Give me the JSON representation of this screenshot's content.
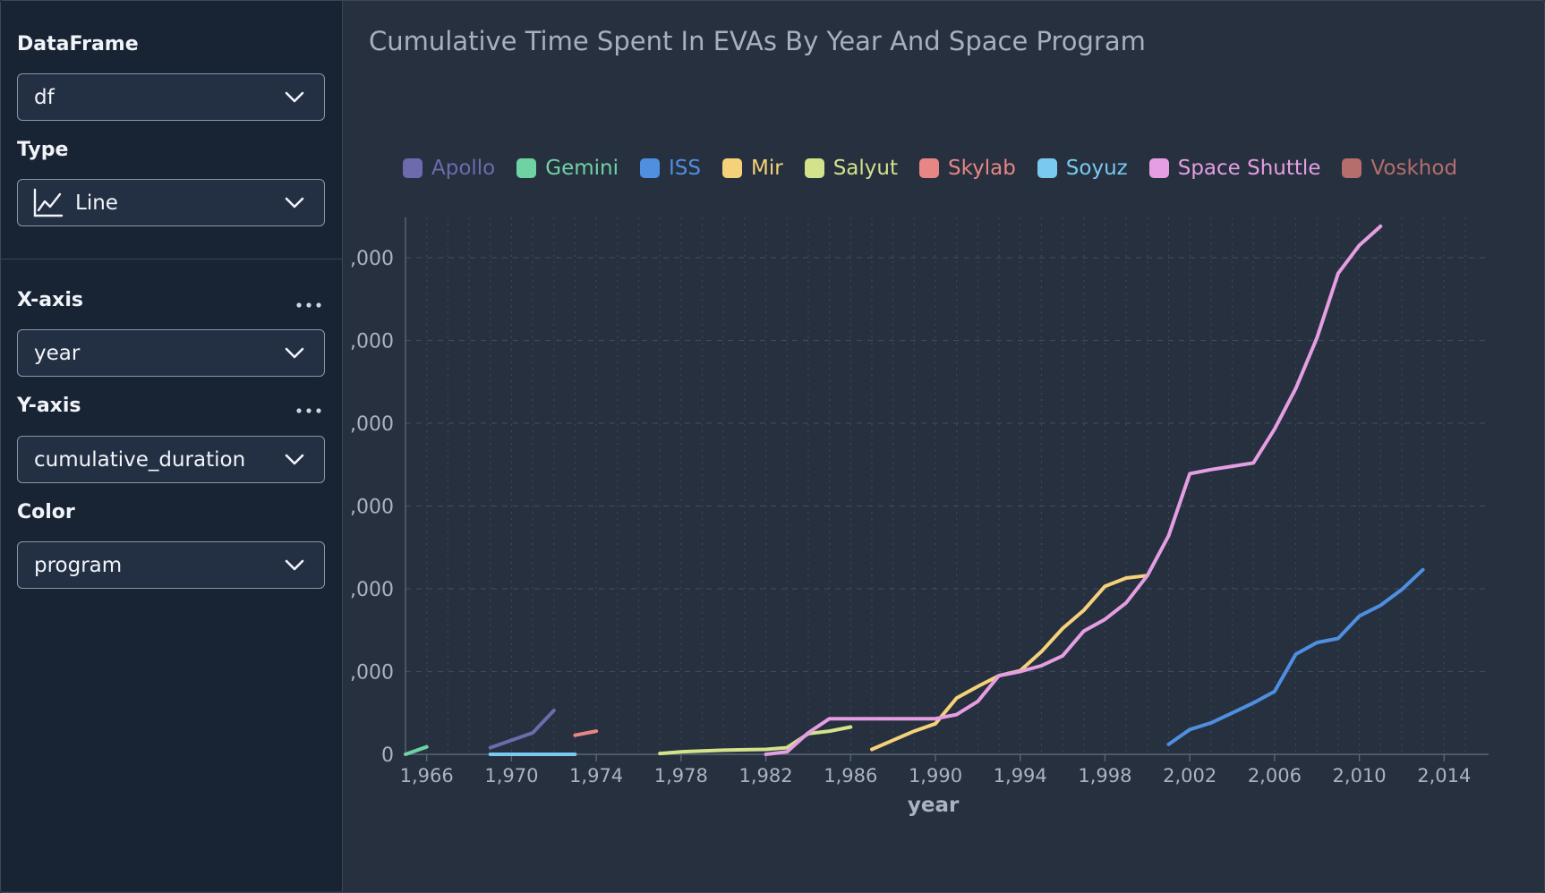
{
  "sidebar": {
    "dataframe": {
      "label": "DataFrame",
      "value": "df"
    },
    "type": {
      "label": "Type",
      "value": "Line",
      "icon": "line-chart-icon"
    },
    "xaxis": {
      "label": "X-axis",
      "value": "year"
    },
    "yaxis": {
      "label": "Y-axis",
      "value": "cumulative_duration"
    },
    "color": {
      "label": "Color",
      "value": "program"
    }
  },
  "chart_data": {
    "type": "line",
    "title": "Cumulative Time Spent In EVAs By Year And Space Program",
    "xlabel": "year",
    "ylabel": "",
    "xlim": [
      1965,
      2015
    ],
    "ylim": [
      0,
      6500
    ],
    "x_ticks": [
      1966,
      1970,
      1974,
      1978,
      1982,
      1986,
      1990,
      1994,
      1998,
      2002,
      2006,
      2010,
      2014
    ],
    "x_tick_labels": [
      "1,966",
      "1,970",
      "1,974",
      "1,978",
      "1,982",
      "1,986",
      "1,990",
      "1,994",
      "1,998",
      "2,002",
      "2,006",
      "2,010",
      "2,014"
    ],
    "y_ticks": [
      0,
      1000,
      2000,
      3000,
      4000,
      5000,
      6000
    ],
    "y_tick_labels": [
      "0",
      ",000",
      ",000",
      ",000",
      ",000",
      ",000",
      ",000"
    ],
    "grid": true,
    "legend_position": "top",
    "series": [
      {
        "name": "Apollo",
        "color": "#6d6bad",
        "x": [
          1969,
          1971,
          1972
        ],
        "y": [
          80,
          260,
          530
        ]
      },
      {
        "name": "Gemini",
        "color": "#6fd2a4",
        "x": [
          1965,
          1966
        ],
        "y": [
          0,
          90
        ]
      },
      {
        "name": "ISS",
        "color": "#4f8fe0",
        "x": [
          2001,
          2002,
          2003,
          2004,
          2005,
          2006,
          2007,
          2008,
          2009,
          2010,
          2011,
          2012,
          2013
        ],
        "y": [
          120,
          300,
          380,
          500,
          620,
          760,
          1210,
          1350,
          1400,
          1670,
          1800,
          1990,
          2230
        ]
      },
      {
        "name": "Mir",
        "color": "#f5d27a",
        "x": [
          1987,
          1988,
          1989,
          1990,
          1991,
          1992,
          1993,
          1994,
          1995,
          1996,
          1997,
          1998,
          1999,
          2000
        ],
        "y": [
          60,
          170,
          280,
          370,
          680,
          820,
          950,
          1010,
          1240,
          1520,
          1740,
          2030,
          2130,
          2160
        ]
      },
      {
        "name": "Salyut",
        "color": "#d3e38b",
        "x": [
          1977,
          1978,
          1979,
          1980,
          1981,
          1982,
          1983,
          1984,
          1985,
          1986
        ],
        "y": [
          10,
          30,
          40,
          50,
          55,
          60,
          80,
          250,
          280,
          330
        ]
      },
      {
        "name": "Skylab",
        "color": "#e88686",
        "x": [
          1973,
          1974
        ],
        "y": [
          230,
          280
        ]
      },
      {
        "name": "Soyuz",
        "color": "#79c9f0",
        "x": [
          1969,
          1973
        ],
        "y": [
          0,
          0
        ]
      },
      {
        "name": "Space Shuttle",
        "color": "#e59ee2",
        "x": [
          1982,
          1983,
          1984,
          1985,
          1986,
          1987,
          1988,
          1989,
          1990,
          1991,
          1992,
          1993,
          1994,
          1995,
          1996,
          1997,
          1998,
          1999,
          2000,
          2001,
          2002,
          2003,
          2004,
          2005,
          2006,
          2007,
          2008,
          2009,
          2010,
          2011
        ],
        "y": [
          0,
          30,
          260,
          430,
          430,
          430,
          430,
          430,
          430,
          480,
          640,
          950,
          1000,
          1070,
          1190,
          1490,
          1630,
          1830,
          2160,
          2640,
          3390,
          3440,
          3480,
          3520,
          3930,
          4420,
          5030,
          5810,
          6150,
          6380
        ]
      },
      {
        "name": "Voskhod",
        "color": "#b56e6b",
        "x": [],
        "y": []
      }
    ]
  }
}
